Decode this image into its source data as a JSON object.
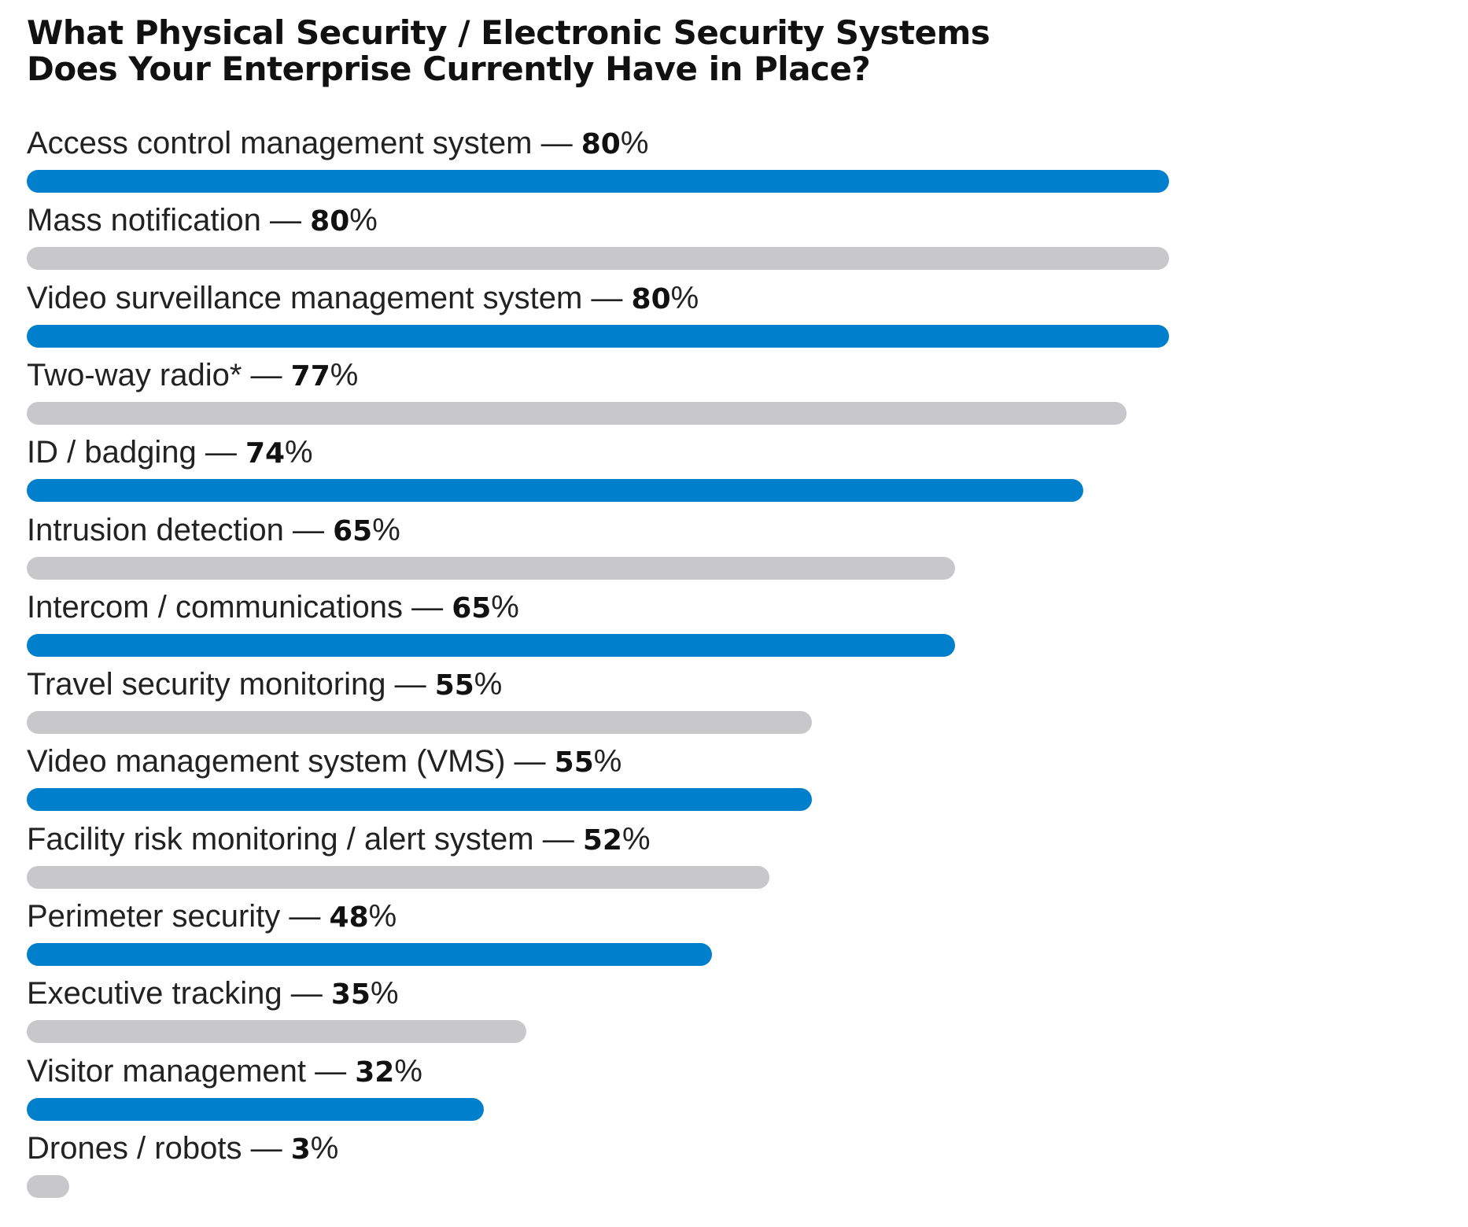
{
  "chart_data": {
    "type": "bar",
    "orientation": "horizontal",
    "title_lines": [
      "What Physical Security / Electronic Security Systems",
      "Does Your Enterprise Currently Have in Place?"
    ],
    "categories": [
      "Access control management system",
      "Mass notification",
      "Video surveillance management system",
      "Two-way radio*",
      "ID / badging",
      "Intrusion detection",
      "Intercom / communications",
      "Travel security monitoring",
      "Video management system (VMS)",
      "Facility risk monitoring / alert system",
      "Perimeter security",
      "Executive tracking",
      "Visitor management",
      "Drones / robots"
    ],
    "values": [
      80,
      80,
      80,
      77,
      74,
      65,
      65,
      55,
      55,
      52,
      48,
      35,
      32,
      3
    ],
    "value_labels": [
      "80",
      "80",
      "80",
      "77",
      "74",
      "65",
      "65",
      "55",
      "55",
      "52",
      "48",
      "35",
      "32",
      "3"
    ],
    "separator": " — ",
    "unit": "%",
    "xlim": [
      0,
      80
    ],
    "grid": false,
    "legend": "none",
    "colors": [
      "#0080CC",
      "#C8C8CA"
    ]
  }
}
